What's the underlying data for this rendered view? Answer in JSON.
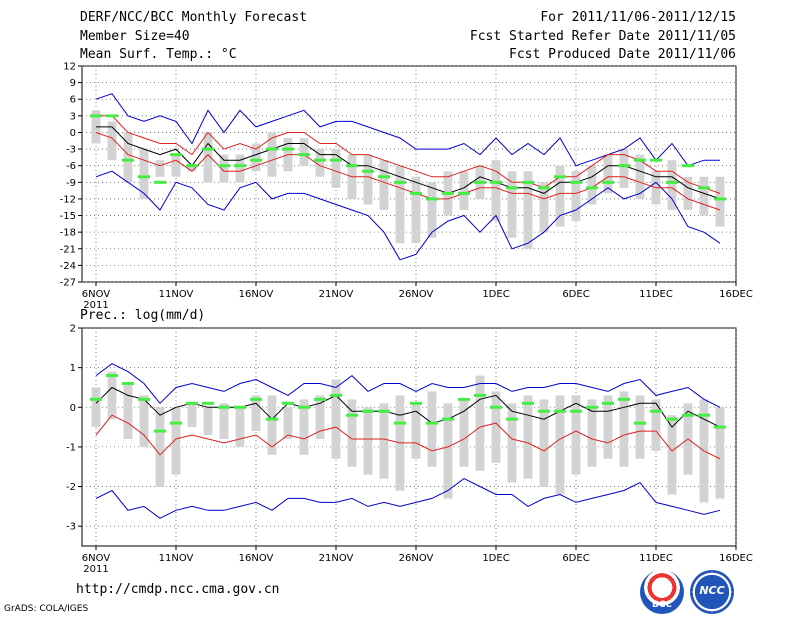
{
  "header": {
    "title": "DERF/NCC/BCC Monthly Forecast",
    "member_size": "Member Size=40",
    "variable": "Mean Surf. Temp.: °C",
    "period": "For 2011/11/06-2011/12/15",
    "refer_date": "Fcst Started Refer Date 2011/11/05",
    "produced_date": "Fcst Produced Date 2011/11/06"
  },
  "footer": {
    "url": "http://cmdp.ncc.cma.gov.cn",
    "credit": "GrADS: COLA/IGES",
    "logo_bcc": "BCC",
    "logo_ncc": "NCC"
  },
  "colors": {
    "ensemble_bar": "#d3d3d3",
    "mean": "#000000",
    "spread": "#dd2222",
    "extreme": "#0000cc",
    "observed": "#44ee44"
  },
  "chart_data": [
    {
      "type": "line",
      "title": "Mean Surf. Temp.: °C",
      "x_tick_labels": [
        "6NOV",
        "11NOV",
        "16NOV",
        "21NOV",
        "26NOV",
        "1DEC",
        "6DEC",
        "11DEC",
        "16DEC"
      ],
      "x_year_label": "2011",
      "ylim": [
        -27,
        12
      ],
      "y_ticks": [
        "12",
        "9",
        "6",
        "3",
        "0",
        "-3",
        "-6",
        "-9",
        "-12",
        "-15",
        "-18",
        "-21",
        "-24",
        "-27"
      ],
      "days": 40,
      "series": [
        {
          "name": "ensemble_max",
          "values": [
            6,
            7,
            3,
            2,
            3,
            2,
            -2,
            4,
            0,
            4,
            1,
            2,
            3,
            4,
            1,
            2,
            2,
            1,
            0,
            -1,
            -3,
            -3,
            -3,
            -2,
            -4,
            -1,
            -4,
            -2,
            -4,
            -1,
            -6,
            -5,
            -4,
            -3,
            -1,
            -5,
            -2,
            -6,
            -5,
            -5
          ]
        },
        {
          "name": "upper_spread",
          "values": [
            3,
            3,
            0,
            -1,
            -2,
            -2,
            -4,
            0,
            -3,
            -2,
            -3,
            -1,
            0,
            0,
            -2,
            -2,
            -4,
            -4,
            -5,
            -6,
            -7,
            -8,
            -8,
            -7,
            -6,
            -7,
            -9,
            -9,
            -10,
            -8,
            -8,
            -6,
            -4,
            -4,
            -5,
            -7,
            -7,
            -9,
            -10,
            -11
          ]
        },
        {
          "name": "mean",
          "values": [
            1,
            1,
            -2,
            -3,
            -4,
            -3,
            -6,
            -2,
            -5,
            -5,
            -4,
            -3,
            -2,
            -2,
            -4,
            -4,
            -6,
            -6,
            -7,
            -8,
            -9,
            -10,
            -11,
            -10,
            -8,
            -9,
            -10,
            -10,
            -11,
            -9,
            -9,
            -8,
            -6,
            -6,
            -7,
            -8,
            -8,
            -10,
            -11,
            -12
          ]
        },
        {
          "name": "lower_spread",
          "values": [
            0,
            -1,
            -4,
            -5,
            -6,
            -5,
            -7,
            -4,
            -7,
            -7,
            -6,
            -5,
            -4,
            -4,
            -6,
            -7,
            -8,
            -8,
            -9,
            -10,
            -11,
            -12,
            -12,
            -11,
            -10,
            -10,
            -11,
            -11,
            -12,
            -11,
            -11,
            -10,
            -8,
            -8,
            -9,
            -10,
            -10,
            -12,
            -13,
            -14
          ]
        },
        {
          "name": "ensemble_min",
          "values": [
            -8,
            -7,
            -9,
            -11,
            -14,
            -9,
            -10,
            -13,
            -14,
            -10,
            -9,
            -12,
            -11,
            -11,
            -12,
            -13,
            -14,
            -15,
            -18,
            -23,
            -22,
            -18,
            -16,
            -15,
            -18,
            -15,
            -21,
            -20,
            -18,
            -15,
            -14,
            -12,
            -10,
            -12,
            -11,
            -9,
            -12,
            -17,
            -18,
            -20
          ]
        },
        {
          "name": "bar_top",
          "values": [
            4,
            2,
            0,
            -3,
            -5,
            -4,
            -6,
            0,
            -4,
            -4,
            -2,
            0,
            -1,
            -1,
            -3,
            -3,
            -4,
            -4,
            -5,
            -6,
            -8,
            -9,
            -7,
            -7,
            -6,
            -5,
            -7,
            -7,
            -9,
            -6,
            -7,
            -6,
            -4,
            -3,
            -4,
            -7,
            -5,
            -8,
            -8,
            -8
          ]
        },
        {
          "name": "bar_bottom",
          "values": [
            -2,
            -5,
            -9,
            -12,
            -8,
            -8,
            -7,
            -9,
            -9,
            -9,
            -7,
            -8,
            -7,
            -6,
            -8,
            -10,
            -12,
            -13,
            -14,
            -20,
            -20,
            -19,
            -15,
            -14,
            -12,
            -16,
            -19,
            -21,
            -18,
            -17,
            -16,
            -13,
            -11,
            -10,
            -12,
            -13,
            -14,
            -14,
            -15,
            -17
          ]
        },
        {
          "name": "observed",
          "values": [
            3,
            3,
            -5,
            -8,
            -9,
            -4,
            -6,
            -3,
            -6,
            -6,
            -5,
            -3,
            -3,
            -4,
            -5,
            -5,
            -6,
            -7,
            -8,
            -9,
            -11,
            -12,
            -11,
            -11,
            -9,
            -9,
            -10,
            -9,
            -10,
            -8,
            -9,
            -10,
            -9,
            -6,
            -5,
            -5,
            -9,
            -6,
            -10,
            -12
          ]
        }
      ]
    },
    {
      "type": "line",
      "title": "Prec.: log(mm/d)",
      "x_tick_labels": [
        "6NOV",
        "11NOV",
        "16NOV",
        "21NOV",
        "26NOV",
        "1DEC",
        "6DEC",
        "11DEC",
        "16DEC"
      ],
      "x_year_label": "2011",
      "ylim": [
        -3.5,
        2
      ],
      "y_ticks": [
        "2",
        "1",
        "0",
        "-1",
        "-2",
        "-3"
      ],
      "days": 40,
      "series": [
        {
          "name": "ensemble_max",
          "values": [
            0.8,
            1.1,
            0.9,
            0.6,
            0.1,
            0.5,
            0.6,
            0.5,
            0.4,
            0.6,
            0.7,
            0.5,
            0.3,
            0.6,
            0.6,
            0.5,
            0.8,
            0.4,
            0.6,
            0.6,
            0.4,
            0.6,
            0.5,
            0.5,
            0.6,
            0.6,
            0.4,
            0.5,
            0.5,
            0.6,
            0.6,
            0.5,
            0.4,
            0.6,
            0.7,
            0.3,
            0.4,
            0.5,
            0.2,
            0.0
          ]
        },
        {
          "name": "mean",
          "values": [
            0.1,
            0.5,
            0.3,
            0.2,
            -0.2,
            0.0,
            0.1,
            0.0,
            0.0,
            0.0,
            0.1,
            -0.3,
            0.1,
            0.0,
            0.1,
            0.3,
            -0.1,
            -0.1,
            -0.1,
            -0.2,
            -0.1,
            -0.4,
            -0.3,
            -0.1,
            0.2,
            0.3,
            -0.1,
            -0.2,
            -0.3,
            -0.1,
            0.1,
            -0.1,
            -0.1,
            0.0,
            0.1,
            0.1,
            -0.5,
            -0.1,
            -0.3,
            -0.5
          ]
        },
        {
          "name": "lower_spread",
          "values": [
            -0.7,
            -0.2,
            -0.4,
            -0.7,
            -1.2,
            -0.8,
            -0.7,
            -0.8,
            -0.9,
            -0.8,
            -0.7,
            -1.0,
            -0.7,
            -0.8,
            -0.6,
            -0.5,
            -0.8,
            -0.8,
            -0.8,
            -0.9,
            -0.9,
            -1.1,
            -1.0,
            -0.8,
            -0.5,
            -0.4,
            -0.8,
            -0.9,
            -1.1,
            -0.8,
            -0.6,
            -0.8,
            -0.9,
            -0.7,
            -0.6,
            -0.6,
            -1.1,
            -0.8,
            -1.1,
            -1.3
          ]
        },
        {
          "name": "ensemble_min",
          "values": [
            -2.3,
            -2.1,
            -2.6,
            -2.5,
            -2.8,
            -2.6,
            -2.5,
            -2.6,
            -2.6,
            -2.5,
            -2.4,
            -2.6,
            -2.3,
            -2.3,
            -2.4,
            -2.4,
            -2.3,
            -2.5,
            -2.4,
            -2.5,
            -2.4,
            -2.3,
            -2.1,
            -1.8,
            -2.0,
            -2.2,
            -2.2,
            -2.5,
            -2.3,
            -2.2,
            -2.4,
            -2.3,
            -2.2,
            -2.1,
            -1.9,
            -2.4,
            -2.5,
            -2.6,
            -2.7,
            -2.6
          ]
        },
        {
          "name": "bar_top",
          "values": [
            0.5,
            0.9,
            0.6,
            0.3,
            0.0,
            0.0,
            0.1,
            0.0,
            0.1,
            0.0,
            0.3,
            0.3,
            0.0,
            0.2,
            0.3,
            0.7,
            0.2,
            0.0,
            0.1,
            0.3,
            0.1,
            0.4,
            0.1,
            0.2,
            0.8,
            0.4,
            0.1,
            0.3,
            0.2,
            0.3,
            0.3,
            0.2,
            0.3,
            0.4,
            0.3,
            0.2,
            -0.2,
            0.1,
            0.2,
            0.0
          ]
        },
        {
          "name": "bar_bottom",
          "values": [
            -0.5,
            -0.3,
            -0.8,
            -1.0,
            -2.0,
            -1.7,
            -0.5,
            -0.7,
            -0.8,
            -1.0,
            -0.6,
            -1.2,
            -0.8,
            -1.2,
            -0.8,
            -1.3,
            -1.5,
            -1.7,
            -1.8,
            -2.1,
            -1.3,
            -1.5,
            -2.3,
            -1.5,
            -1.6,
            -1.4,
            -1.9,
            -1.8,
            -2.0,
            -2.2,
            -1.7,
            -1.5,
            -1.3,
            -1.5,
            -1.3,
            -1.1,
            -2.2,
            -1.7,
            -2.4,
            -2.3
          ]
        },
        {
          "name": "observed",
          "values": [
            0.2,
            0.8,
            0.6,
            0.2,
            -0.6,
            -0.4,
            0.1,
            0.1,
            0.0,
            0.0,
            0.2,
            -0.3,
            0.1,
            0.0,
            0.2,
            0.3,
            -0.2,
            -0.1,
            -0.1,
            -0.4,
            0.1,
            -0.4,
            -0.3,
            0.2,
            0.3,
            0.0,
            -0.3,
            0.1,
            -0.1,
            -0.1,
            -0.1,
            0.0,
            0.1,
            0.2,
            -0.4,
            -0.1,
            -0.3,
            -0.2,
            -0.2,
            -0.5
          ]
        }
      ]
    }
  ]
}
